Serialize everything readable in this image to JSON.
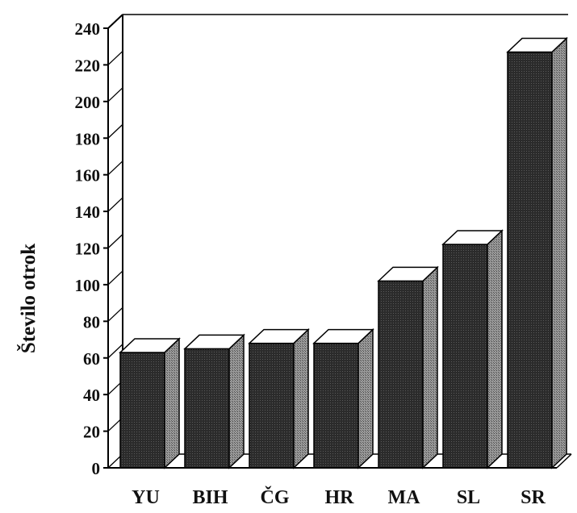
{
  "chart_data": {
    "type": "bar",
    "title": "",
    "xlabel": "",
    "ylabel": "Število otrok",
    "categories": [
      "YU",
      "BIH",
      "ČG",
      "HR",
      "MA",
      "SL",
      "SR"
    ],
    "values": [
      63,
      65,
      68,
      68,
      102,
      122,
      227
    ],
    "ylim": [
      0,
      240
    ],
    "yticks": [
      0,
      20,
      40,
      60,
      80,
      100,
      120,
      140,
      160,
      180,
      200,
      220,
      240
    ],
    "grid": false,
    "legend": "none",
    "style": "3d",
    "colors": {
      "bar_front": "#2a2a2a",
      "bar_side": "#8c8c8c",
      "bar_top": "#ffffff",
      "axis": "#000000"
    }
  }
}
